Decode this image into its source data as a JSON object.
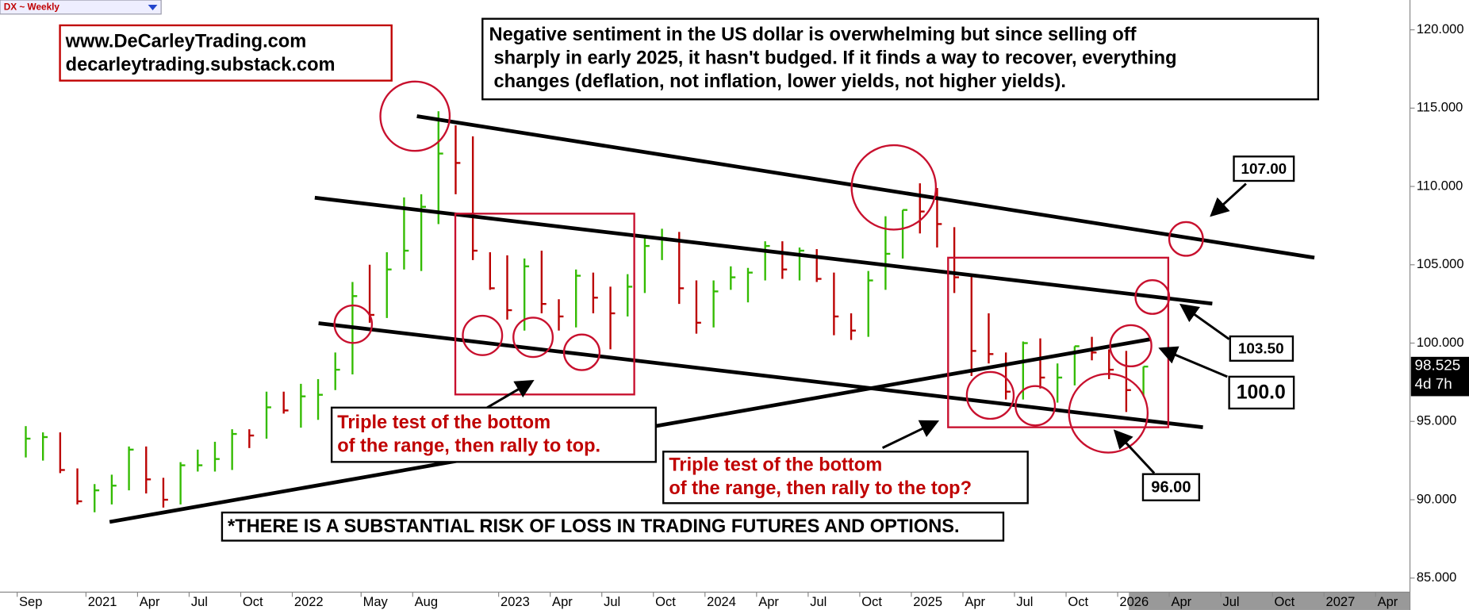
{
  "chart_data": {
    "type": "ohlc",
    "symbol": "DX ~ Weekly",
    "x": [
      "2020-09",
      "2020-10",
      "2020-11",
      "2020-12",
      "2021-01",
      "2021-02",
      "2021-03",
      "2021-04",
      "2021-05",
      "2021-06",
      "2021-07",
      "2021-08",
      "2021-09",
      "2021-10",
      "2021-11",
      "2021-12",
      "2022-01",
      "2022-02",
      "2022-03",
      "2022-04",
      "2022-05",
      "2022-06",
      "2022-07",
      "2022-08",
      "2022-09",
      "2022-10",
      "2022-11",
      "2022-12",
      "2023-01",
      "2023-02",
      "2023-03",
      "2023-04",
      "2023-05",
      "2023-06",
      "2023-07",
      "2023-08",
      "2023-09",
      "2023-10",
      "2023-11",
      "2023-12",
      "2024-01",
      "2024-02",
      "2024-03",
      "2024-04",
      "2024-05",
      "2024-06",
      "2024-07",
      "2024-08",
      "2024-09",
      "2024-10",
      "2024-11",
      "2024-12",
      "2025-01",
      "2025-02",
      "2025-03",
      "2025-04",
      "2025-05",
      "2025-06",
      "2025-07",
      "2025-08",
      "2025-09",
      "2025-10",
      "2025-11",
      "2025-12",
      "2026-01",
      "2026-02"
    ],
    "high": [
      94.7,
      94.3,
      94.3,
      92.0,
      91.0,
      91.6,
      93.4,
      93.4,
      91.4,
      92.4,
      93.2,
      93.7,
      94.5,
      94.5,
      96.9,
      96.9,
      97.4,
      97.7,
      99.4,
      103.9,
      105.0,
      105.8,
      109.3,
      109.5,
      114.8,
      113.9,
      113.2,
      105.8,
      105.6,
      105.4,
      105.9,
      102.8,
      104.7,
      104.5,
      103.6,
      104.4,
      106.8,
      107.3,
      107.1,
      104.0,
      104.0,
      104.9,
      104.8,
      106.5,
      106.5,
      106.1,
      106.0,
      104.5,
      101.9,
      104.6,
      108.1,
      108.5,
      110.2,
      109.9,
      107.4,
      104.4,
      101.9,
      99.4,
      100.1,
      100.3,
      98.7,
      99.8,
      100.4,
      99.6,
      99.5,
      98.5
    ],
    "low": [
      92.7,
      92.5,
      91.7,
      89.7,
      89.2,
      89.7,
      90.6,
      90.4,
      89.5,
      89.7,
      91.8,
      91.8,
      91.9,
      93.3,
      93.9,
      95.5,
      94.6,
      95.1,
      97.0,
      98.0,
      101.3,
      101.6,
      104.7,
      104.6,
      107.6,
      109.5,
      105.3,
      103.4,
      101.5,
      100.8,
      101.9,
      100.8,
      101.0,
      101.9,
      99.6,
      101.7,
      103.2,
      105.3,
      102.5,
      100.6,
      101.0,
      103.4,
      102.6,
      104.0,
      104.1,
      104.0,
      103.9,
      100.5,
      100.2,
      100.4,
      103.4,
      105.4,
      107.0,
      106.1,
      103.2,
      97.9,
      98.7,
      96.4,
      96.4,
      97.1,
      96.2,
      97.3,
      98.9,
      97.7,
      95.6,
      96.6
    ],
    "close": [
      93.9,
      94.0,
      91.9,
      89.9,
      90.6,
      90.9,
      93.2,
      91.3,
      90.0,
      92.2,
      92.2,
      92.6,
      94.2,
      94.1,
      95.9,
      95.7,
      96.6,
      96.7,
      98.3,
      103.0,
      101.8,
      104.7,
      105.9,
      108.7,
      112.1,
      111.5,
      105.9,
      103.5,
      102.1,
      104.9,
      102.5,
      101.7,
      104.3,
      102.9,
      101.9,
      103.6,
      106.2,
      106.7,
      103.5,
      101.3,
      103.3,
      104.2,
      104.5,
      106.2,
      104.7,
      105.9,
      104.1,
      101.7,
      100.8,
      104.0,
      105.7,
      108.5,
      108.4,
      107.6,
      104.2,
      99.5,
      99.3,
      96.9,
      100.0,
      97.8,
      97.8,
      99.8,
      99.4,
      98.3,
      97.0,
      98.5
    ],
    "up_color": "#33bb00",
    "down_color": "#bb0000",
    "xlim": [
      "2020-08",
      "2027-06"
    ],
    "xticks": [
      {
        "value": "2020-09",
        "label": "Sep"
      },
      {
        "value": "2021-01",
        "label": "2021"
      },
      {
        "value": "2021-04",
        "label": "Apr"
      },
      {
        "value": "2021-07",
        "label": "Jul"
      },
      {
        "value": "2021-10",
        "label": "Oct"
      },
      {
        "value": "2022-01",
        "label": "2022"
      },
      {
        "value": "2022-05",
        "label": "May"
      },
      {
        "value": "2022-08",
        "label": "Aug"
      },
      {
        "value": "2023-01",
        "label": "2023"
      },
      {
        "value": "2023-04",
        "label": "Apr"
      },
      {
        "value": "2023-07",
        "label": "Jul"
      },
      {
        "value": "2023-10",
        "label": "Oct"
      },
      {
        "value": "2024-01",
        "label": "2024"
      },
      {
        "value": "2024-04",
        "label": "Apr"
      },
      {
        "value": "2024-07",
        "label": "Jul"
      },
      {
        "value": "2024-10",
        "label": "Oct"
      },
      {
        "value": "2025-01",
        "label": "2025"
      },
      {
        "value": "2025-04",
        "label": "Apr"
      },
      {
        "value": "2025-07",
        "label": "Jul"
      },
      {
        "value": "2025-10",
        "label": "Oct"
      },
      {
        "value": "2026-01",
        "label": "2026"
      },
      {
        "value": "2026-04",
        "label": "Apr"
      },
      {
        "value": "2026-07",
        "label": "Jul"
      },
      {
        "value": "2026-10",
        "label": "Oct"
      },
      {
        "value": "2027-01",
        "label": "2027"
      },
      {
        "value": "2027-04",
        "label": "Apr"
      }
    ],
    "ylim": [
      84.1,
      121.9
    ],
    "yticks": [
      {
        "value": 85,
        "label": "85.000"
      },
      {
        "value": 90,
        "label": "90.000"
      },
      {
        "value": 95,
        "label": "95.000"
      },
      {
        "value": 100,
        "label": "100.000"
      },
      {
        "value": 105,
        "label": "105.000"
      },
      {
        "value": 110,
        "label": "110.000"
      },
      {
        "value": 115,
        "label": "115.000"
      },
      {
        "value": 120,
        "label": "120.000"
      }
    ],
    "last_price": 98.525,
    "time_left": "4d 7h",
    "site_lines": [
      "www.DeCarleyTrading.com",
      "decarleytrading.substack.com"
    ],
    "commentary": [
      "Negative sentiment in the US dollar is overwhelming but since selling off",
      "sharply in early 2025, it hasn't budged. If it finds a way to recover, everything",
      "changes (deflation, not inflation, lower yields, not higher yields)."
    ],
    "callout_1": [
      "Triple test of the bottom",
      "of the range, then rally to top."
    ],
    "callout_2": [
      "Triple test of the bottom",
      "of the range, then rally to the top?"
    ],
    "disclaimer": "*THERE IS A SUBSTANTIAL RISK OF LOSS IN TRADING FUTURES AND OPTIONS.",
    "level_labels": [
      "107.00",
      "103.50",
      "100.0",
      "96.00"
    ]
  }
}
